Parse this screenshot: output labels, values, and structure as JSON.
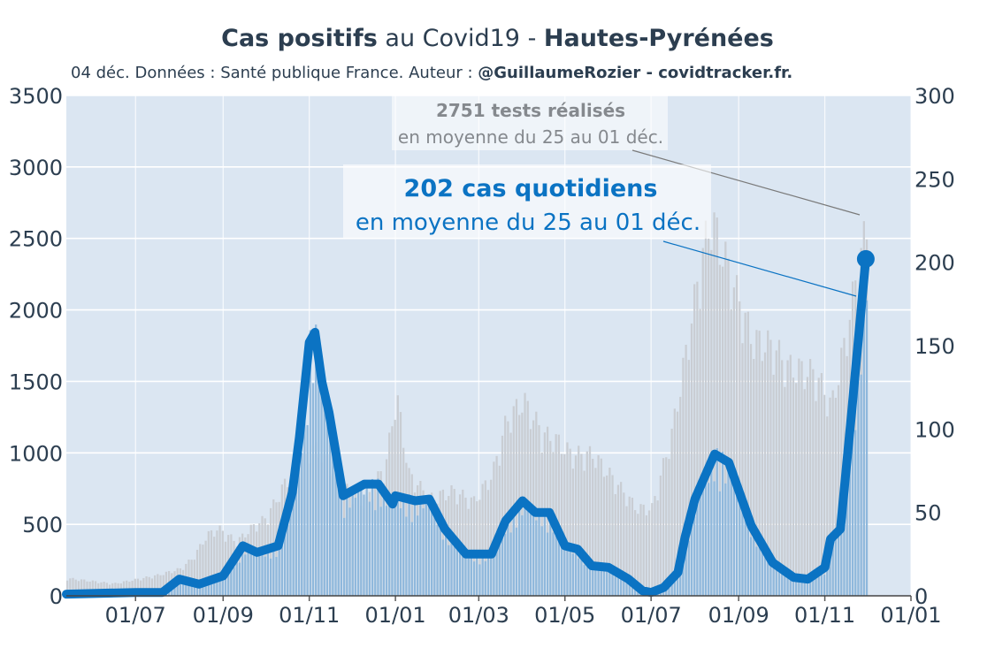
{
  "title": {
    "part1": "Cas positifs",
    "part2": " au Covid19 - ",
    "part3": "Hautes-Pyrénées"
  },
  "subtitle": {
    "prefix": "04 déc. Données : Santé publique France. Auteur : ",
    "author": "@GuillaumeRozier - covidtracker.fr."
  },
  "annotations": {
    "tests_bold": "2751 tests réalisés",
    "tests_sub": "en moyenne du 25 au 01 déc.",
    "cases_bold": "202 cas quotidiens",
    "cases_sub": "en moyenne du 25 au 01 déc."
  },
  "colors": {
    "cases_line": "#0b73c3",
    "cases_bars": "#8fb8dc",
    "tests_bars": "#c9cdd3",
    "plot_bg": "#dbe6f2"
  },
  "chart_data": {
    "type": "line",
    "x_axis": {
      "range": [
        "2020-05-13",
        "2022-01-01"
      ],
      "tick_values": [
        "2020-07-01",
        "2020-09-01",
        "2020-11-01",
        "2021-01-01",
        "2021-03-01",
        "2021-05-01",
        "2021-07-01",
        "2021-09-01",
        "2021-11-01",
        "2022-01-01"
      ],
      "tick_labels": [
        "01/07",
        "01/09",
        "01/11",
        "01/01",
        "01/03",
        "01/05",
        "01/07",
        "01/09",
        "01/11",
        "01/01"
      ]
    },
    "y_left": {
      "range": [
        0,
        3500
      ],
      "ticks": [
        0,
        500,
        1000,
        1500,
        2000,
        2500,
        3000,
        3500
      ]
    },
    "y_right": {
      "range": [
        0,
        300
      ],
      "ticks": [
        0,
        50,
        100,
        150,
        200,
        250,
        300
      ]
    },
    "grid": true,
    "series": [
      {
        "axis": "left",
        "style": "bars",
        "points": [
          [
            "2020-05-13",
            130
          ],
          [
            "2020-06-15",
            90
          ],
          [
            "2020-07-15",
            150
          ],
          [
            "2020-08-01",
            200
          ],
          [
            "2020-08-10",
            280
          ],
          [
            "2020-08-20",
            450
          ],
          [
            "2020-08-28",
            500
          ],
          [
            "2020-09-10",
            400
          ],
          [
            "2020-09-20",
            500
          ],
          [
            "2020-10-01",
            580
          ],
          [
            "2020-10-15",
            850
          ],
          [
            "2020-11-01",
            1100
          ],
          [
            "2020-11-10",
            1050
          ],
          [
            "2020-11-25",
            800
          ],
          [
            "2020-12-10",
            680
          ],
          [
            "2020-12-25",
            1000
          ],
          [
            "2021-01-01",
            1500
          ],
          [
            "2021-01-10",
            900
          ],
          [
            "2021-01-25",
            720
          ],
          [
            "2021-02-10",
            780
          ],
          [
            "2021-02-25",
            700
          ],
          [
            "2021-03-10",
            900
          ],
          [
            "2021-03-20",
            1300
          ],
          [
            "2021-04-01",
            1450
          ],
          [
            "2021-04-15",
            1200
          ],
          [
            "2021-04-25",
            1150
          ],
          [
            "2021-05-05",
            1050
          ],
          [
            "2021-05-20",
            1050
          ],
          [
            "2021-06-05",
            850
          ],
          [
            "2021-06-20",
            650
          ],
          [
            "2021-07-01",
            650
          ],
          [
            "2021-07-15",
            1200
          ],
          [
            "2021-07-25",
            1800
          ],
          [
            "2021-08-05",
            2500
          ],
          [
            "2021-08-12",
            2800
          ],
          [
            "2021-08-25",
            2400
          ],
          [
            "2021-09-10",
            1900
          ],
          [
            "2021-09-25",
            1850
          ],
          [
            "2021-10-05",
            1700
          ],
          [
            "2021-10-25",
            1650
          ],
          [
            "2021-11-05",
            1400
          ],
          [
            "2021-11-15",
            1900
          ],
          [
            "2021-11-25",
            2500
          ],
          [
            "2021-12-01",
            2751
          ]
        ]
      },
      {
        "axis": "right",
        "style": "line",
        "points": [
          [
            "2020-05-13",
            1
          ],
          [
            "2020-07-01",
            2
          ],
          [
            "2020-07-20",
            2
          ],
          [
            "2020-08-01",
            10
          ],
          [
            "2020-08-15",
            7
          ],
          [
            "2020-09-01",
            12
          ],
          [
            "2020-09-15",
            30
          ],
          [
            "2020-09-25",
            26
          ],
          [
            "2020-10-10",
            30
          ],
          [
            "2020-10-20",
            62
          ],
          [
            "2020-10-25",
            95
          ],
          [
            "2020-11-01",
            152
          ],
          [
            "2020-11-05",
            158
          ],
          [
            "2020-11-10",
            128
          ],
          [
            "2020-11-15",
            110
          ],
          [
            "2020-11-25",
            60
          ],
          [
            "2020-12-10",
            67
          ],
          [
            "2020-12-20",
            67
          ],
          [
            "2020-12-30",
            55
          ],
          [
            "2021-01-01",
            60
          ],
          [
            "2021-01-15",
            57
          ],
          [
            "2021-01-25",
            58
          ],
          [
            "2021-02-05",
            40
          ],
          [
            "2021-02-20",
            25
          ],
          [
            "2021-03-01",
            25
          ],
          [
            "2021-03-10",
            25
          ],
          [
            "2021-03-20",
            45
          ],
          [
            "2021-04-01",
            57
          ],
          [
            "2021-04-10",
            50
          ],
          [
            "2021-04-20",
            50
          ],
          [
            "2021-05-01",
            30
          ],
          [
            "2021-05-10",
            28
          ],
          [
            "2021-05-20",
            18
          ],
          [
            "2021-06-01",
            17
          ],
          [
            "2021-06-15",
            10
          ],
          [
            "2021-06-25",
            3
          ],
          [
            "2021-07-01",
            2
          ],
          [
            "2021-07-10",
            5
          ],
          [
            "2021-07-20",
            14
          ],
          [
            "2021-07-25",
            35
          ],
          [
            "2021-08-01",
            58
          ],
          [
            "2021-08-15",
            85
          ],
          [
            "2021-08-25",
            80
          ],
          [
            "2021-09-10",
            42
          ],
          [
            "2021-09-25",
            20
          ],
          [
            "2021-10-10",
            11
          ],
          [
            "2021-10-20",
            10
          ],
          [
            "2021-11-01",
            17
          ],
          [
            "2021-11-05",
            34
          ],
          [
            "2021-11-12",
            40
          ],
          [
            "2021-11-20",
            110
          ],
          [
            "2021-11-30",
            202
          ]
        ]
      }
    ]
  }
}
